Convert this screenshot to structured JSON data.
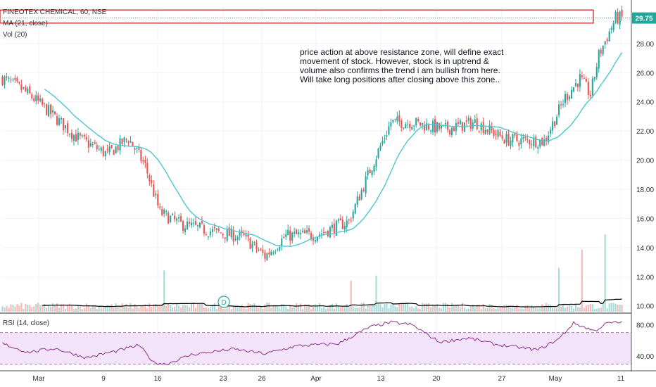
{
  "header": {
    "symbol_line": "FINEOTEX CHEMICAL, 60, NSE",
    "ma_label": "MA (21, close)",
    "vol_label": "Vol (20)",
    "rsi_label": "RSI (14, close)"
  },
  "annotation": {
    "lines": [
      "price action at above resistance zone, will define exact",
      "movement of stock. However, stock is in uptrend &",
      "volume also confirms the trend i am bullish from here.",
      "Will take long positions after closing above this zone.."
    ]
  },
  "dividend_marker": "D",
  "colors": {
    "up": "#26a69a",
    "down": "#ef5350",
    "ma": "#4dc6cf",
    "rsi": "#8e2f8e",
    "rsi_band": "#f3e3fb",
    "zone": "#c62828",
    "price_tag": "#26a69a",
    "grid": "#f0f3fa"
  },
  "chart_data": [
    {
      "type": "candlestick",
      "title": "FINEOTEX CHEMICAL, 60, NSE",
      "y_ticks": [
        "10.00",
        "12.00",
        "14.00",
        "16.00",
        "18.00",
        "20.00",
        "22.00",
        "24.00",
        "26.00",
        "28.00"
      ],
      "ylim": [
        9.6,
        30.6
      ],
      "x_ticks": [
        "Mar",
        "9",
        "16",
        "23",
        "26",
        "Apr",
        "13",
        "20",
        "27",
        "May",
        "11"
      ],
      "last_price": "29.75",
      "resistance_zone": [
        29.4,
        30.3
      ],
      "ma_period": 21,
      "close_path": [
        {
          "bar": 0,
          "close": 25.6
        },
        {
          "bar": 10,
          "close": 24.8
        },
        {
          "bar": 20,
          "close": 23.6
        },
        {
          "bar": 35,
          "close": 21.6
        },
        {
          "bar": 50,
          "close": 20.4
        },
        {
          "bar": 60,
          "close": 21.5
        },
        {
          "bar": 68,
          "close": 19.6
        },
        {
          "bar": 75,
          "close": 16.4
        },
        {
          "bar": 85,
          "close": 15.6
        },
        {
          "bar": 100,
          "close": 15.1
        },
        {
          "bar": 115,
          "close": 14.7
        },
        {
          "bar": 125,
          "close": 13.4
        },
        {
          "bar": 135,
          "close": 14.8
        },
        {
          "bar": 150,
          "close": 14.9
        },
        {
          "bar": 165,
          "close": 15.8
        },
        {
          "bar": 175,
          "close": 19.3
        },
        {
          "bar": 185,
          "close": 22.6
        },
        {
          "bar": 195,
          "close": 22.6
        },
        {
          "bar": 210,
          "close": 22.1
        },
        {
          "bar": 225,
          "close": 22.6
        },
        {
          "bar": 240,
          "close": 21.4
        },
        {
          "bar": 258,
          "close": 21.3
        },
        {
          "bar": 268,
          "close": 24.3
        },
        {
          "bar": 275,
          "close": 25.6
        },
        {
          "bar": 280,
          "close": 24.5
        },
        {
          "bar": 284,
          "close": 27.2
        },
        {
          "bar": 292,
          "close": 29.75
        }
      ],
      "volume": {
        "label": "Vol (20)",
        "baseline_value_range": [
          0,
          3
        ],
        "spikes": [
          {
            "bar": 77,
            "value": 1.6
          },
          {
            "bar": 166,
            "value": 1.2
          },
          {
            "bar": 178,
            "value": 1.4
          },
          {
            "bar": 265,
            "value": 1.7
          },
          {
            "bar": 276,
            "value": 2.4
          },
          {
            "bar": 287,
            "value": 3.0
          }
        ]
      }
    },
    {
      "type": "line",
      "title": "RSI (14, close)",
      "y_ticks": [
        "40.00",
        "80.00"
      ],
      "ylim": [
        25,
        92
      ],
      "bands": [
        30,
        70
      ],
      "x_ticks": [
        "Mar",
        "9",
        "16",
        "23",
        "26",
        "Apr",
        "13",
        "20",
        "27",
        "May",
        "11"
      ],
      "series": [
        {
          "name": "RSI (14, close)",
          "points": [
            {
              "bar": 0,
              "value": 56
            },
            {
              "bar": 12,
              "value": 45
            },
            {
              "bar": 25,
              "value": 50
            },
            {
              "bar": 40,
              "value": 38
            },
            {
              "bar": 55,
              "value": 47
            },
            {
              "bar": 65,
              "value": 54
            },
            {
              "bar": 72,
              "value": 32
            },
            {
              "bar": 78,
              "value": 30
            },
            {
              "bar": 90,
              "value": 42
            },
            {
              "bar": 110,
              "value": 49
            },
            {
              "bar": 125,
              "value": 43
            },
            {
              "bar": 140,
              "value": 53
            },
            {
              "bar": 160,
              "value": 56
            },
            {
              "bar": 175,
              "value": 77
            },
            {
              "bar": 185,
              "value": 83
            },
            {
              "bar": 195,
              "value": 80
            },
            {
              "bar": 208,
              "value": 58
            },
            {
              "bar": 222,
              "value": 63
            },
            {
              "bar": 235,
              "value": 55
            },
            {
              "bar": 255,
              "value": 48
            },
            {
              "bar": 265,
              "value": 62
            },
            {
              "bar": 272,
              "value": 82
            },
            {
              "bar": 282,
              "value": 72
            },
            {
              "bar": 288,
              "value": 82
            },
            {
              "bar": 295,
              "value": 83
            }
          ]
        }
      ]
    }
  ]
}
